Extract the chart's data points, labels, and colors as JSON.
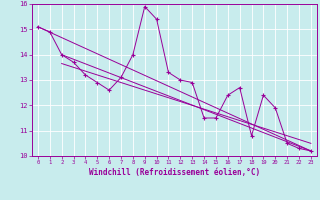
{
  "xlabel": "Windchill (Refroidissement éolien,°C)",
  "bg_color": "#c8eced",
  "line_color": "#990099",
  "grid_color": "#ffffff",
  "xlim": [
    -0.5,
    23.5
  ],
  "ylim": [
    10,
    16
  ],
  "xticks": [
    0,
    1,
    2,
    3,
    4,
    5,
    6,
    7,
    8,
    9,
    10,
    11,
    12,
    13,
    14,
    15,
    16,
    17,
    18,
    19,
    20,
    21,
    22,
    23
  ],
  "yticks": [
    10,
    11,
    12,
    13,
    14,
    15,
    16
  ],
  "series_x": [
    0,
    1,
    2,
    3,
    4,
    5,
    6,
    7,
    8,
    9,
    10,
    11,
    12,
    13,
    14,
    15,
    16,
    17,
    18,
    19,
    20,
    21,
    22,
    23
  ],
  "series_y": [
    15.1,
    14.9,
    14.0,
    13.7,
    13.2,
    12.9,
    12.6,
    13.1,
    14.0,
    15.9,
    15.4,
    13.3,
    13.0,
    12.9,
    11.5,
    11.5,
    12.4,
    12.7,
    10.8,
    12.4,
    11.9,
    10.5,
    10.3,
    10.2
  ],
  "trend1_x": [
    0,
    23
  ],
  "trend1_y": [
    15.1,
    10.2
  ],
  "trend2_x": [
    2,
    23
  ],
  "trend2_y": [
    14.0,
    10.2
  ],
  "trend3_x": [
    2,
    23
  ],
  "trend3_y": [
    13.65,
    10.5
  ]
}
